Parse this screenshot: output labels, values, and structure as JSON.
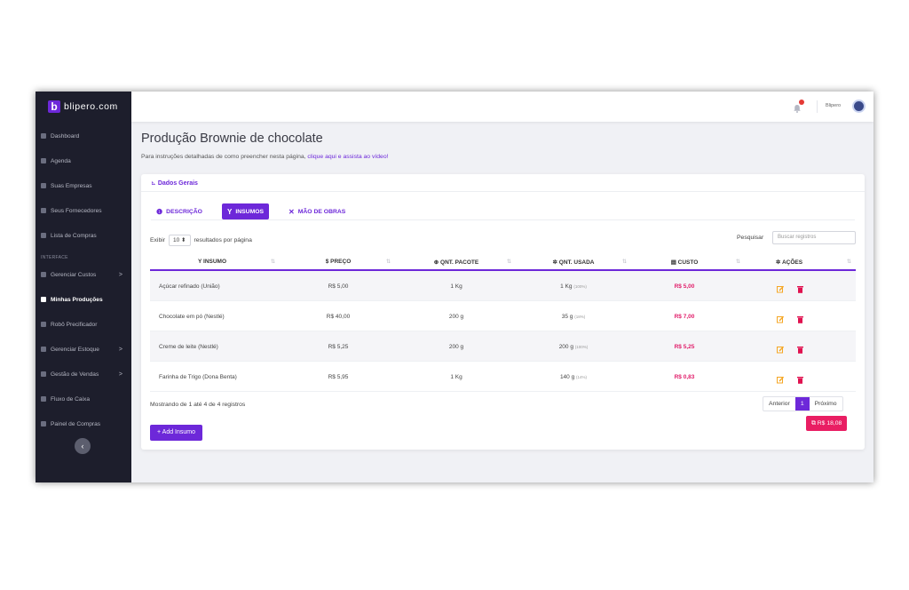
{
  "brand": {
    "logo_letter": "b",
    "name": "blipero.com"
  },
  "sidebar": {
    "items": [
      {
        "label": "Dashboard"
      },
      {
        "label": "Agenda"
      },
      {
        "label": "Suas Empresas"
      },
      {
        "label": "Seus Fornecedores"
      },
      {
        "label": "Lista de Compras"
      }
    ],
    "section_label": "INTERFACE",
    "items2": [
      {
        "label": "Gerenciar Custos",
        "chevron": ">"
      },
      {
        "label": "Minhas Produções"
      },
      {
        "label": "Robô Precificador"
      },
      {
        "label": "Gerenciar Estoque",
        "chevron": ">"
      },
      {
        "label": "Gestão de Vendas",
        "chevron": ">"
      },
      {
        "label": "Fluxo de Caixa"
      },
      {
        "label": "Painel de Compras"
      }
    ],
    "collapse_icon": "‹"
  },
  "topbar": {
    "user_name": "Blipero"
  },
  "page": {
    "title": "Produção Brownie de chocolate",
    "intro_text": "Para instruções detalhadas de como preencher nesta página,",
    "intro_link": "clique aqui e assista ao vídeo!"
  },
  "card": {
    "header": "Dados Gerais"
  },
  "tabs": [
    {
      "label": "DESCRIÇÃO",
      "icon": "info-icon"
    },
    {
      "label": "INSUMOS",
      "icon": "sprout-icon"
    },
    {
      "label": "MÃO DE OBRAS",
      "icon": "tools-icon"
    }
  ],
  "table_controls": {
    "show_prefix": "Exibir",
    "page_length": "10",
    "show_suffix": "resultados por página",
    "search_label": "Pesquisar",
    "search_placeholder": "Buscar registros"
  },
  "table": {
    "columns": [
      "INSUMO",
      "$ PREÇO",
      "QNT. PACOTE",
      "QNT. USADA",
      "CUSTO",
      "AÇÕES"
    ],
    "rows": [
      {
        "insumo": "Açúcar refinado (União)",
        "preco": "R$ 5,00",
        "pacote": "1 Kg",
        "usada": "1 Kg",
        "usada_pct": "(100%)",
        "custo": "R$ 5,00"
      },
      {
        "insumo": "Chocolate em pó (Nestlé)",
        "preco": "R$ 40,00",
        "pacote": "200 g",
        "usada": "35 g",
        "usada_pct": "(18%)",
        "custo": "R$ 7,00"
      },
      {
        "insumo": "Creme de leite (Nestlé)",
        "preco": "R$ 5,25",
        "pacote": "200 g",
        "usada": "200 g",
        "usada_pct": "(100%)",
        "custo": "R$ 5,25"
      },
      {
        "insumo": "Farinha de Trigo (Dona Benta)",
        "preco": "R$ 5,95",
        "pacote": "1 Kg",
        "usada": "140 g",
        "usada_pct": "(14%)",
        "custo": "R$ 0,83"
      }
    ]
  },
  "footer": {
    "info": "Mostrando de 1 até 4 de 4 registros",
    "prev": "Anterior",
    "current_page": "1",
    "next": "Próximo",
    "add_button": "Add Insumo",
    "total": "R$ 18,08"
  },
  "colors": {
    "accent": "#6d28d9",
    "cost": "#e11d6a",
    "sidebar": "#1d1e2c"
  }
}
